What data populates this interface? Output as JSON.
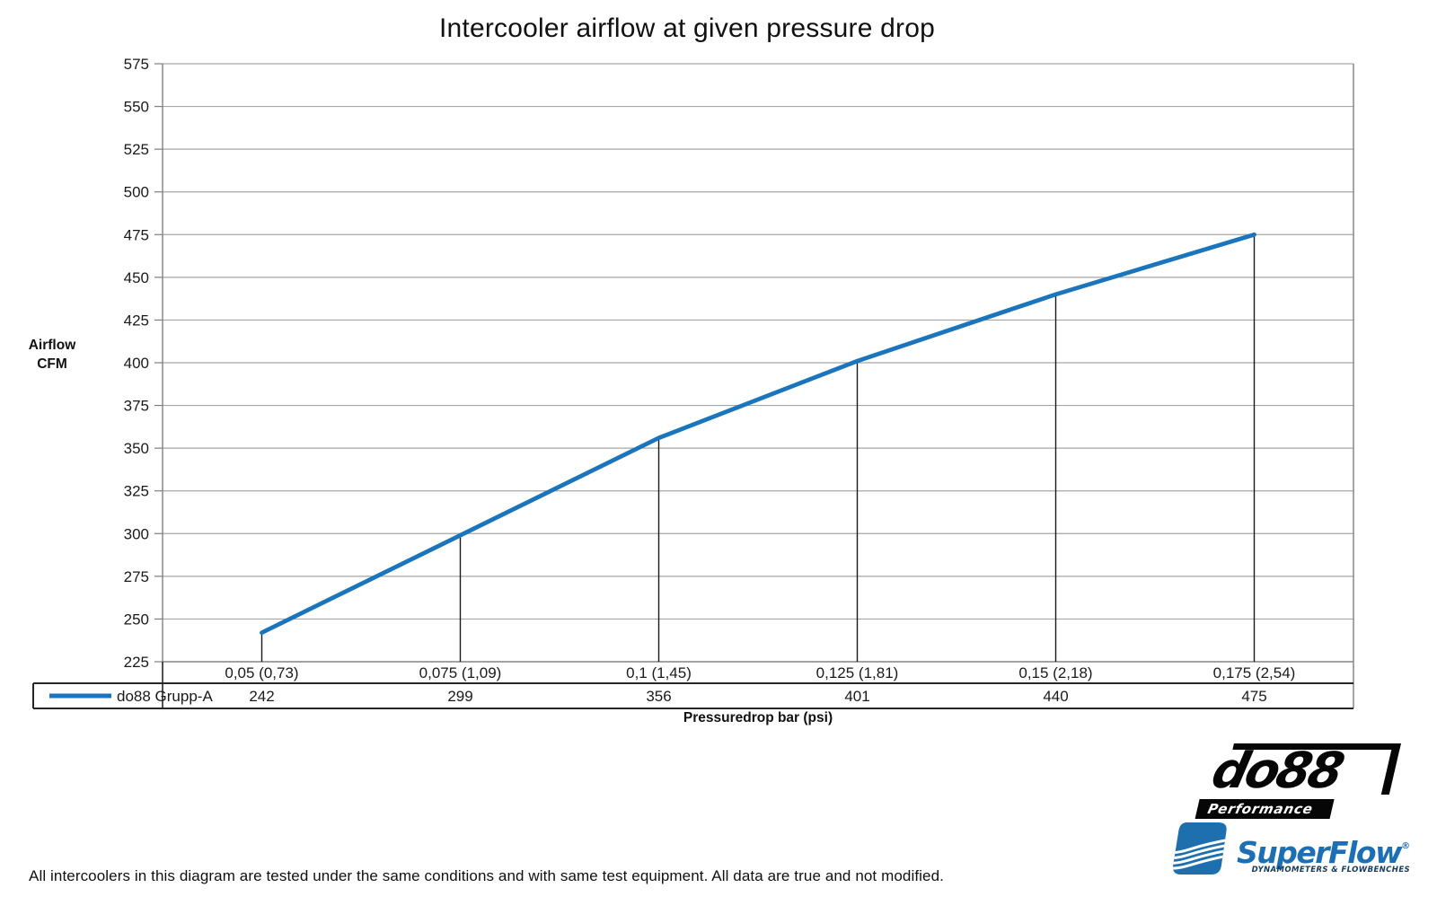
{
  "title": "Intercooler airflow at given pressure drop",
  "y_axis_title_lines": [
    "Airflow",
    "CFM"
  ],
  "x_axis_title": "Pressuredrop bar (psi)",
  "footer": "All intercoolers in this diagram are tested under the same conditions and with same test equipment. All data are true and not modified.",
  "legend": {
    "series_label": "do88 Grupp-A"
  },
  "chart_data": {
    "type": "line",
    "title": "Intercooler airflow at given pressure drop",
    "xlabel": "Pressuredrop bar (psi)",
    "ylabel": "Airflow CFM",
    "categories": [
      "0,05 (0,73)",
      "0,075 (1,09)",
      "0,1 (1,45)",
      "0,125 (1,81)",
      "0,15 (2,18)",
      "0,175 (2,54)"
    ],
    "series": [
      {
        "name": "do88 Grupp-A",
        "values": [
          242,
          299,
          356,
          401,
          440,
          475
        ],
        "color": "#1B75BC"
      }
    ],
    "ylim": [
      225,
      575
    ],
    "ytick_step": 25,
    "grid": "horizontal",
    "legend_position": "bottom-table-left",
    "data_table_shown": true,
    "drop_lines": true
  },
  "colors": {
    "line": "#1B75BC",
    "gridline": "#A6A6A6",
    "axis": "#7f7f7f",
    "x_axis_line": "#8a8a8a",
    "table_border": "#262626",
    "drop_line": "#1a1a1a",
    "superflow_blue": "#1E6FAE"
  },
  "logos": {
    "do88": {
      "text": "do88",
      "subtext": "Performance"
    },
    "superflow": {
      "text": "SuperFlow",
      "reg_mark": "®",
      "subtext": "DYNAMOMETERS & FLOWBENCHES"
    }
  }
}
